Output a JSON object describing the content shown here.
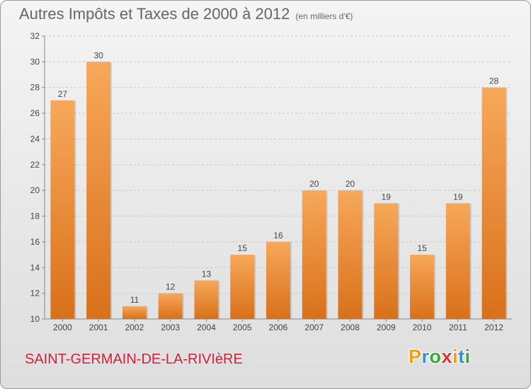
{
  "title": "Autres Impôts et Taxes de 2000 à 2012",
  "subtitle": "(en milliers d'€)",
  "location": "SAINT-GERMAIN-DE-LA-RIVIèRE",
  "logo": {
    "letters": [
      "P",
      "r",
      "o",
      "x",
      "i",
      "t",
      "i"
    ],
    "colors": [
      "#f0a000",
      "#3a8fd0",
      "#3aa53a",
      "#e03030",
      "#f0a000",
      "#3a8fd0",
      "#3aa53a"
    ]
  },
  "chart_data": {
    "type": "bar",
    "categories": [
      "2000",
      "2001",
      "2002",
      "2003",
      "2004",
      "2005",
      "2006",
      "2007",
      "2008",
      "2009",
      "2010",
      "2011",
      "2012"
    ],
    "values": [
      27,
      30,
      11,
      12,
      13,
      15,
      16,
      20,
      20,
      19,
      15,
      19,
      28
    ],
    "ylim": [
      10,
      32
    ],
    "yticks": [
      10,
      12,
      14,
      16,
      18,
      20,
      22,
      24,
      26,
      28,
      30,
      32
    ],
    "grid": true,
    "bar_color": "#e8852a"
  }
}
